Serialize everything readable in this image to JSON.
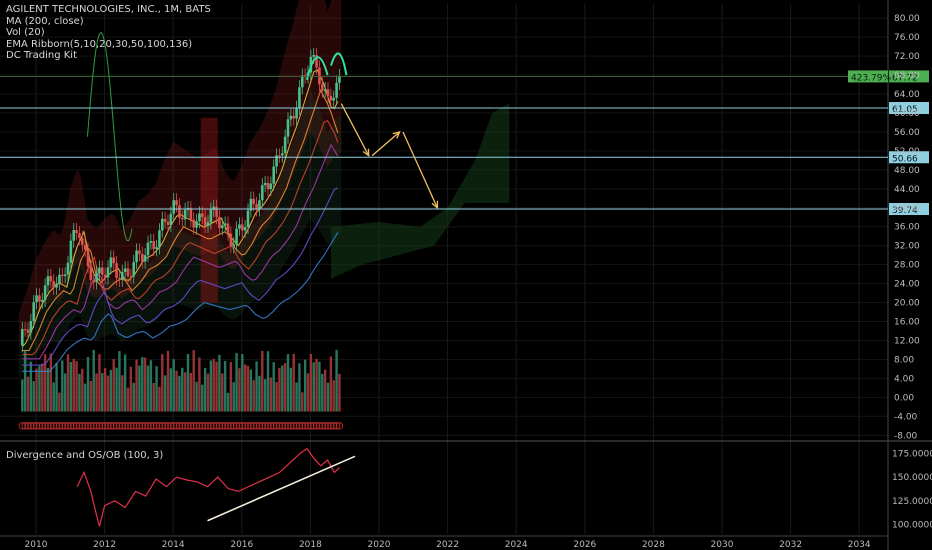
{
  "legend": {
    "title": "AGILENT TECHNOLOGIES, INC., 1M, BATS",
    "ma": "MA (200, close)",
    "vol": "Vol (20)",
    "ema": "EMA Ribborn(5,10,20,30,50,100,136)",
    "dc": "DC Trading Kit"
  },
  "sub_legend": "Divergence and OS/OB (100, 3)",
  "colors": {
    "background": "#000000",
    "up": "#2e8b6f",
    "down": "#b23b3b",
    "hline": "#8fd0e0",
    "arrow": "#f0c060",
    "price_tag": "#4caf50",
    "osc_line": "#e0304a",
    "trend_line": "#f2ecd8"
  },
  "chart_data": [
    {
      "type": "line",
      "title": "AGILENT TECHNOLOGIES, INC., 1M, BATS",
      "x_ticks": [
        "2010",
        "2012",
        "2014",
        "2016",
        "2018",
        "2020",
        "2022",
        "2024",
        "2026",
        "2028",
        "2030",
        "2032",
        "2034"
      ],
      "y_ticks": [
        "80.00",
        "76.00",
        "72.00",
        "68.00",
        "64.00",
        "60.00",
        "56.00",
        "52.00",
        "48.00",
        "44.00",
        "40.00",
        "36.00",
        "32.00",
        "28.00",
        "24.00",
        "20.00",
        "16.00",
        "12.00",
        "8.00",
        "4.00",
        "0.00",
        "-4.00",
        "-8.00"
      ],
      "ylim": [
        -9,
        83
      ],
      "series": [
        {
          "values_desc": "monthly close",
          "x": [
            2009.5,
            2009.75,
            2010,
            2010.25,
            2010.5,
            2010.75,
            2011,
            2011.25,
            2011.5,
            2011.75,
            2012,
            2012.25,
            2012.5,
            2012.75,
            2013,
            2013.25,
            2013.5,
            2013.75,
            2014,
            2014.25,
            2014.5,
            2014.75,
            2015,
            2015.25,
            2015.5,
            2015.75,
            2016,
            2016.25,
            2016.5,
            2016.75,
            2017,
            2017.25,
            2017.5,
            2017.75,
            2018,
            2018.25,
            2018.5,
            2018.75
          ],
          "y": [
            11,
            15,
            20,
            23,
            25,
            24,
            32,
            36,
            27,
            25,
            27,
            28,
            25,
            27,
            30,
            31,
            33,
            37,
            40,
            39,
            38,
            37,
            38,
            39,
            35,
            33,
            36,
            40,
            42,
            45,
            49,
            55,
            60,
            66,
            72,
            68,
            62,
            66
          ]
        }
      ],
      "horizontal_levels": [
        {
          "value": 67.72,
          "label": "67.72",
          "tag": "423.79%"
        },
        {
          "value": 61.05,
          "label": "61.05"
        },
        {
          "value": 50.66,
          "label": "50.66"
        },
        {
          "value": 39.74,
          "label": "39.74"
        }
      ],
      "projection_arrows": [
        {
          "from": [
            2018.9,
            62
          ],
          "to": [
            2019.7,
            51
          ]
        },
        {
          "from": [
            2019.8,
            51
          ],
          "to": [
            2020.6,
            56
          ]
        },
        {
          "from": [
            2020.7,
            56
          ],
          "to": [
            2021.7,
            40
          ]
        }
      ]
    },
    {
      "type": "line",
      "title": "Divergence and OS/OB (100, 3)",
      "y_ticks": [
        "175.0000",
        "150.0000",
        "125.0000",
        "100.0000"
      ],
      "ylim": [
        90,
        185
      ],
      "series": [
        {
          "x": [
            2011.2,
            2011.4,
            2011.6,
            2011.75,
            2011.85,
            2012,
            2012.3,
            2012.6,
            2012.9,
            2013.2,
            2013.5,
            2013.8,
            2014.1,
            2014.4,
            2014.7,
            2015,
            2015.3,
            2015.6,
            2015.9,
            2016.2,
            2016.5,
            2016.8,
            2017.1,
            2017.4,
            2017.7,
            2017.9,
            2018.1,
            2018.3,
            2018.5,
            2018.7,
            2018.85
          ],
          "y": [
            140,
            155,
            135,
            112,
            98,
            120,
            125,
            118,
            135,
            130,
            148,
            140,
            150,
            147,
            145,
            140,
            150,
            138,
            135,
            140,
            145,
            150,
            155,
            165,
            175,
            180,
            170,
            162,
            168,
            155,
            160
          ]
        }
      ],
      "trend_line": {
        "from": [
          2015,
          104
        ],
        "to": [
          2019.3,
          172
        ]
      }
    }
  ]
}
